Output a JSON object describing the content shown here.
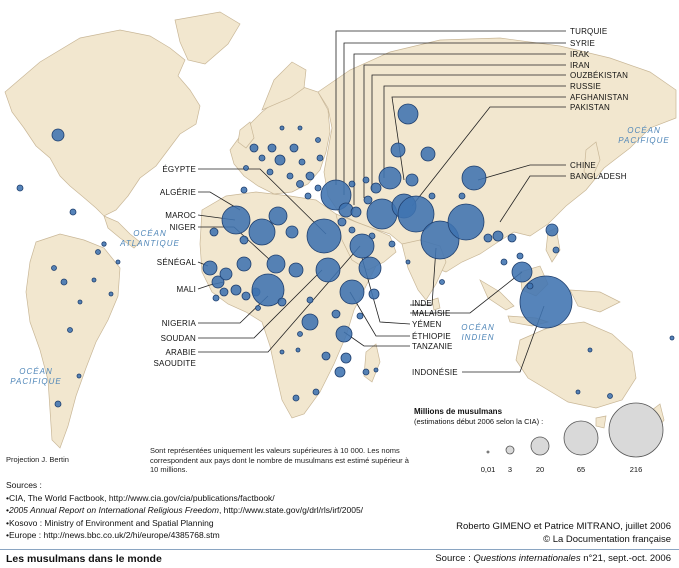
{
  "title": "Les musulmans dans le monde",
  "source_credit": {
    "prefix": "Source : ",
    "publication": "Questions internationales",
    "issue": " n°21, sept.-oct. 2006"
  },
  "authors": "Roberto GIMENO et Patrice MITRANO, juillet 2006",
  "copyright": "© La Documentation française",
  "projection": "Projection J. Bertin",
  "note": "Sont représentées uniquement les valeurs supérieures à 10 000. Les noms correspondent aux pays dont le nombre de musulmans est estimé supérieur à 10 millions.",
  "sources": {
    "heading": "Sources :",
    "items": [
      {
        "text": "CIA, The World Factbook, http://www.cia.gov/cia/publications/factbook/"
      },
      {
        "italic": "2005 Annual Report on International Religious Freedom",
        "text": ", http://www.state.gov/g/drl/rls/irf/2005/"
      },
      {
        "text": "Kosovo : Ministry of Environment and Spatial Planning"
      },
      {
        "text": "Europe : http://news.bbc.co.uk/2/hi/europe/4385768.stm"
      }
    ]
  },
  "legend": {
    "title": "Millions de musulmans",
    "subtitle": "(estimations début 2006 selon la CIA) :",
    "values": [
      "0,01",
      "3",
      "20",
      "65",
      "216"
    ]
  },
  "oceans": {
    "pacific_west": [
      "OCÉAN",
      "PACIFIQUE"
    ],
    "atlantic": [
      "OCÉAN",
      "ATLANTIQUE"
    ],
    "indian": [
      "OCÉAN",
      "INDIEN"
    ],
    "pacific_east": [
      "OCÉAN",
      "PACIFIQUE"
    ]
  },
  "country_labels": {
    "turquie": "TURQUIE",
    "syrie": "SYRIE",
    "irak": "IRAK",
    "iran": "IRAN",
    "ouzbekistan": "OUZBÉKISTAN",
    "russie": "RUSSIE",
    "afghanistan": "AFGHANISTAN",
    "pakistan": "PAKISTAN",
    "chine": "CHINE",
    "bangladesh": "BANGLADESH",
    "egypte": "ÉGYPTE",
    "algerie": "ALGÉRIE",
    "maroc": "MAROC",
    "niger": "NIGER",
    "senegal": "SÉNÉGAL",
    "mali": "MALI",
    "nigeria": "NIGERIA",
    "soudan": "SOUDAN",
    "arabie": "ARABIE",
    "saoudite": "SAOUDITE",
    "inde": "INDE",
    "malaisie": "MALAISIE",
    "yemen": "YÉMEN",
    "ethiopie": "ÉTHIOPIE",
    "tanzanie": "TANZANIE",
    "indonesie": "INDONÉSIE"
  },
  "colors": {
    "ocean": "#ffffff",
    "land": "#f2e7cf",
    "border": "#c9b797",
    "circle": "#3f73b0",
    "circle_stroke": "#1f3f6e",
    "leader": "#222222",
    "legend_circle": "#d9d9d9"
  }
}
